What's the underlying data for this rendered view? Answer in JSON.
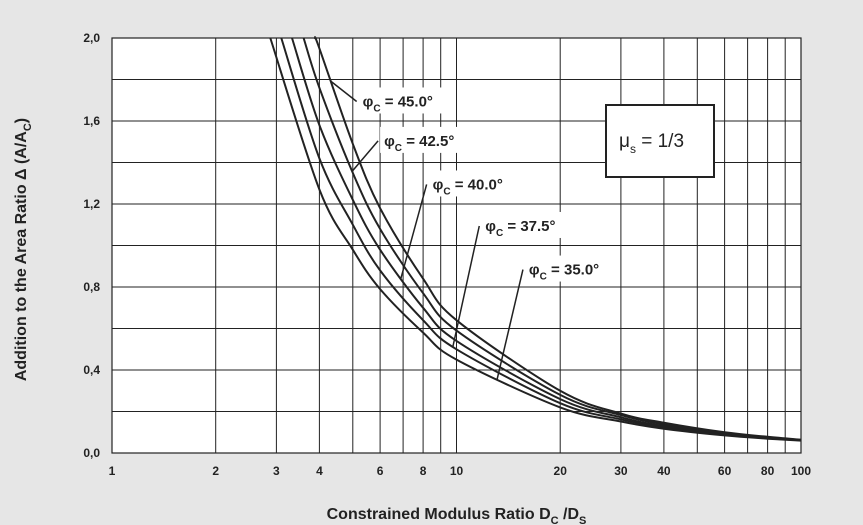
{
  "chart_data": {
    "type": "line",
    "xlabel": {
      "main": "Constrained Modulus Ratio D",
      "sub1": "C",
      "mid": " /D",
      "sub2": "S"
    },
    "ylabel": {
      "main": "Addition to the Area Ratio Δ (A/A",
      "sub": "C",
      "end": ")"
    },
    "x_scale": "log",
    "xlim": [
      1,
      100
    ],
    "ylim": [
      0,
      2.0
    ],
    "grid": true,
    "x_ticks": [
      {
        "value": 1,
        "label": "1"
      },
      {
        "value": 2,
        "label": "2"
      },
      {
        "value": 3,
        "label": "3"
      },
      {
        "value": 4,
        "label": "4"
      },
      {
        "value": 6,
        "label": "6"
      },
      {
        "value": 8,
        "label": "8"
      },
      {
        "value": 10,
        "label": "10"
      },
      {
        "value": 20,
        "label": "20"
      },
      {
        "value": 30,
        "label": "30"
      },
      {
        "value": 40,
        "label": "40"
      },
      {
        "value": 60,
        "label": "60"
      },
      {
        "value": 80,
        "label": "80"
      },
      {
        "value": 100,
        "label": "100"
      }
    ],
    "y_ticks": [
      {
        "value": 0.0,
        "label": "0,0"
      },
      {
        "value": 0.4,
        "label": "0,4"
      },
      {
        "value": 0.8,
        "label": "0,8"
      },
      {
        "value": 1.2,
        "label": "1,2"
      },
      {
        "value": 1.6,
        "label": "1,6"
      },
      {
        "value": 2.0,
        "label": "2,0"
      }
    ],
    "series": [
      {
        "name": "45.0°",
        "x": [
          3.88,
          4,
          5,
          6,
          8,
          10,
          20,
          30,
          40,
          60,
          80,
          100
        ],
        "y": [
          2.0,
          1.95,
          1.49,
          1.18,
          0.84,
          0.64,
          0.3,
          0.19,
          0.146,
          0.1,
          0.078,
          0.064
        ]
      },
      {
        "name": "42.5°",
        "x": [
          3.6,
          4,
          5,
          6,
          8,
          10,
          20,
          30,
          40,
          60,
          80,
          100
        ],
        "y": [
          2.0,
          1.76,
          1.35,
          1.08,
          0.77,
          0.59,
          0.28,
          0.183,
          0.138,
          0.096,
          0.075,
          0.063
        ]
      },
      {
        "name": "40.0°",
        "x": [
          3.33,
          4,
          5,
          6,
          8,
          10,
          20,
          30,
          40,
          60,
          80,
          100
        ],
        "y": [
          2.0,
          1.58,
          1.22,
          0.98,
          0.7,
          0.54,
          0.26,
          0.172,
          0.13,
          0.092,
          0.073,
          0.062
        ]
      },
      {
        "name": "37.5°",
        "x": [
          3.1,
          4,
          5,
          6,
          8,
          10,
          20,
          30,
          40,
          60,
          80,
          100
        ],
        "y": [
          2.0,
          1.42,
          1.1,
          0.88,
          0.64,
          0.5,
          0.24,
          0.162,
          0.123,
          0.088,
          0.071,
          0.061
        ]
      },
      {
        "name": "35.0°",
        "x": [
          2.88,
          4,
          5,
          6,
          8,
          10,
          20,
          30,
          40,
          60,
          80,
          100
        ],
        "y": [
          2.0,
          1.27,
          0.98,
          0.79,
          0.58,
          0.45,
          0.22,
          0.152,
          0.117,
          0.085,
          0.069,
          0.06
        ]
      }
    ],
    "annotations": [
      {
        "phi_symbol": "φ",
        "subscript": "C",
        "text": " = 45.0°",
        "series": 0,
        "label_at": [
          5.2,
          1.67
        ]
      },
      {
        "phi_symbol": "φ",
        "subscript": "C",
        "text": " = 42.5°",
        "series": 1,
        "label_at": [
          6.0,
          1.48
        ]
      },
      {
        "phi_symbol": "φ",
        "subscript": "C",
        "text": " = 40.0°",
        "series": 2,
        "label_at": [
          8.3,
          1.27
        ]
      },
      {
        "phi_symbol": "φ",
        "subscript": "C",
        "text": " = 37.5°",
        "series": 3,
        "label_at": [
          11.8,
          1.07
        ]
      },
      {
        "phi_symbol": "φ",
        "subscript": "C",
        "text": " = 35.0°",
        "series": 4,
        "label_at": [
          15.8,
          0.86
        ]
      }
    ],
    "legend_box": {
      "symbol": "μ",
      "subscript": "s",
      "text": " = 1/3",
      "placement": "top-right"
    },
    "colors": {
      "background": "#e6e6e6",
      "plot_area": "#ffffff",
      "lines": "#222222",
      "grid": "#222222"
    }
  }
}
